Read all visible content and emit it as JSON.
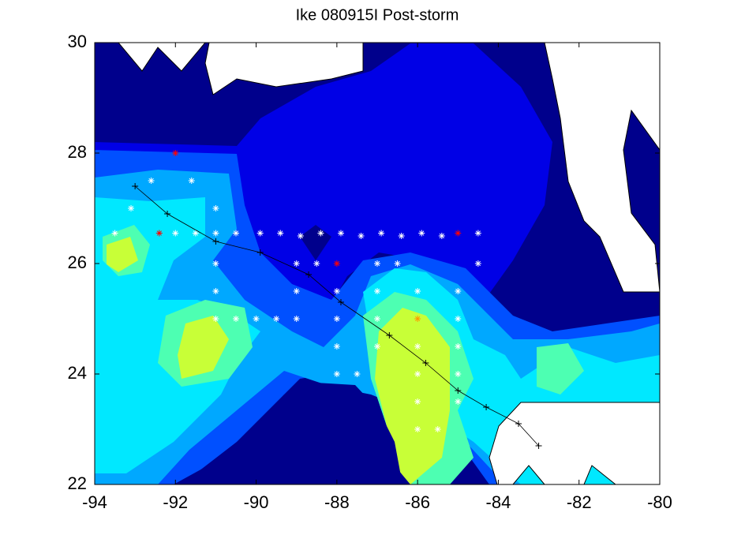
{
  "chart_data": {
    "type": "scatter",
    "title": "Ike 080915I Post-storm",
    "xlim": [
      -94,
      -80
    ],
    "ylim": [
      22,
      30
    ],
    "xticks": [
      -94,
      -92,
      -90,
      -88,
      -86,
      -84,
      -82,
      -80
    ],
    "yticks": [
      22,
      24,
      26,
      28,
      30
    ],
    "series": [
      {
        "color": "#ffffff",
        "marker": "*",
        "x": [
          -93.5,
          -93.1,
          -92.6,
          -91.6,
          -91,
          -92,
          -91.5,
          -91,
          -90.5,
          -89.9,
          -89.4,
          -88.9,
          -88.4,
          -87.9,
          -87.4,
          -86.9,
          -86.4,
          -85.9,
          -85.4,
          -84.5,
          -91,
          -91,
          -91,
          -90.5,
          -90,
          -89.5,
          -89,
          -89,
          -89,
          -88.5,
          -88,
          -88,
          -88,
          -88,
          -87.5,
          -87,
          -87,
          -87,
          -87,
          -86.5,
          -86,
          -86,
          -86,
          -86,
          -86,
          -85.5,
          -85,
          -85,
          -85,
          -85,
          -85,
          -84.5
        ],
        "y": [
          26.55,
          27,
          27.5,
          27.5,
          27,
          26.55,
          26.55,
          26.55,
          26.55,
          26.55,
          26.55,
          26.5,
          26.55,
          26.55,
          26.5,
          26.55,
          26.5,
          26.55,
          26.5,
          26.55,
          26,
          25.5,
          25,
          25,
          25,
          25,
          25,
          25.5,
          26,
          26,
          25.5,
          25,
          24.5,
          24,
          24,
          24.5,
          25,
          25.5,
          26,
          26,
          25.5,
          24.5,
          24,
          23.5,
          23,
          23,
          23.5,
          24,
          24.5,
          25,
          25.5,
          26
        ]
      },
      {
        "color": "#ff0000",
        "marker": "*",
        "x": [
          -92,
          -92.4,
          -88,
          -85
        ],
        "y": [
          28,
          26.55,
          26,
          26.55
        ]
      },
      {
        "color": "#ff9900",
        "marker": "*",
        "x": [
          -86
        ],
        "y": [
          25
        ]
      },
      {
        "color": "#000000",
        "marker": "+",
        "line": true,
        "x": [
          -93,
          -92.2,
          -91,
          -89.9,
          -88.7,
          -87.9,
          -86.7,
          -85.8,
          -85,
          -84.3,
          -83.5,
          -83
        ],
        "y": [
          27.4,
          26.9,
          26.4,
          26.2,
          25.8,
          25.3,
          24.7,
          24.2,
          23.7,
          23.4,
          23.1,
          22.7
        ]
      }
    ]
  }
}
